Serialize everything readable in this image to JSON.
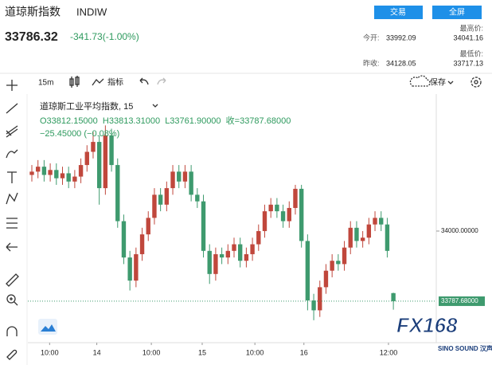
{
  "header": {
    "title": "道琼斯指数",
    "symbol": "INDIW",
    "trade_button": "交易",
    "fullscreen_button": "全屏",
    "price": "33786.32",
    "change": "-341.73(-1.00%)",
    "stats": [
      {
        "label": "今开:",
        "value": "33992.09"
      },
      {
        "label": "最高价:",
        "value": "34041.16"
      },
      {
        "label": "最低价:",
        "value": "33717.13"
      },
      {
        "label": "昨收:",
        "value": "34128.05"
      }
    ]
  },
  "toolbar": {
    "interval": "15m",
    "indicators": "指标",
    "save": "保存"
  },
  "chart_data": {
    "type": "candlestick",
    "title": "道琼斯工业平均指数, 15",
    "ohlc_line": "O33812.15000  H33813.31000  L33761.90000  收=33787.68000",
    "change_line": "−25.45000 (−0.08%)",
    "x": [
      0,
      1,
      2,
      3,
      4,
      5,
      6,
      7,
      8,
      9,
      10,
      11,
      12,
      13,
      14,
      15,
      16,
      17,
      18,
      19,
      20,
      21,
      22,
      23,
      24,
      25,
      26,
      27,
      28,
      29,
      30,
      31,
      32,
      33,
      34,
      35,
      36,
      37,
      38,
      39,
      40,
      41,
      42,
      43,
      44,
      45,
      46,
      47,
      48,
      49,
      50,
      51,
      52,
      53,
      54,
      55,
      56,
      57,
      58,
      59
    ],
    "open": [
      34170,
      34180,
      34195,
      34170,
      34185,
      34160,
      34175,
      34150,
      34165,
      34200,
      34240,
      34270,
      34130,
      34290,
      34200,
      34030,
      33920,
      33850,
      33930,
      33990,
      34040,
      34110,
      34080,
      34130,
      34180,
      34150,
      34180,
      34110,
      34090,
      33940,
      33870,
      33930,
      33920,
      33940,
      33960,
      33910,
      33930,
      33960,
      34000,
      34060,
      34080,
      34060,
      34030,
      34070,
      34128,
      33970,
      33790,
      33760,
      33830,
      33880,
      33910,
      33900,
      33950,
      34010,
      33970,
      33980,
      34020,
      34040,
      34020,
      33812.15
    ],
    "high": [
      34200,
      34215,
      34215,
      34205,
      34205,
      34195,
      34195,
      34185,
      34220,
      34260,
      34300,
      34290,
      34320,
      34310,
      34220,
      34050,
      33940,
      33950,
      34010,
      34060,
      34130,
      34130,
      34150,
      34200,
      34200,
      34200,
      34200,
      34130,
      34110,
      33960,
      33950,
      33950,
      33960,
      33980,
      33980,
      33950,
      33980,
      34020,
      34080,
      34100,
      34100,
      34080,
      34090,
      34140,
      34140,
      33990,
      33810,
      33850,
      33900,
      33930,
      33930,
      33970,
      34030,
      34030,
      34000,
      34040,
      34060,
      34060,
      34040,
      33813.31
    ],
    "low": [
      34150,
      34160,
      34150,
      34150,
      34140,
      34140,
      34130,
      34130,
      34145,
      34180,
      34220,
      34080,
      34110,
      34180,
      34010,
      33900,
      33820,
      33830,
      33910,
      33970,
      34020,
      34060,
      34060,
      34110,
      34130,
      34130,
      34090,
      34070,
      33920,
      33840,
      33850,
      33900,
      33900,
      33920,
      33890,
      33890,
      33910,
      33940,
      33980,
      34040,
      34040,
      34010,
      34010,
      34050,
      33950,
      33760,
      33730,
      33740,
      33810,
      33860,
      33880,
      33880,
      33930,
      33950,
      33950,
      33960,
      34000,
      34000,
      33920,
      33761.9
    ],
    "close": [
      34180,
      34195,
      34170,
      34185,
      34160,
      34175,
      34150,
      34165,
      34200,
      34240,
      34270,
      34130,
      34290,
      34200,
      34030,
      33920,
      33850,
      33930,
      33990,
      34040,
      34110,
      34080,
      34130,
      34180,
      34150,
      34180,
      34110,
      34090,
      33940,
      33870,
      33930,
      33920,
      33940,
      33960,
      33910,
      33930,
      33960,
      34000,
      34060,
      34080,
      34060,
      34030,
      34070,
      34128,
      33970,
      33790,
      33760,
      33830,
      33880,
      33910,
      33900,
      33950,
      34010,
      33970,
      33980,
      34020,
      34040,
      34020,
      33940,
      33787.68
    ],
    "up_color": "#c0473c",
    "down_color": "#3e9a6e",
    "xlim": [
      -0.65,
      66
    ],
    "xticks": [
      {
        "value": 2.9,
        "label": "10:00"
      },
      {
        "value": 10.6,
        "label": "14"
      },
      {
        "value": 19.5,
        "label": "10:00"
      },
      {
        "value": 27.8,
        "label": "15"
      },
      {
        "value": 36.4,
        "label": "10:00"
      },
      {
        "value": 44.4,
        "label": "16"
      },
      {
        "value": 58.2,
        "label": "12:00"
      }
    ],
    "ylim": [
      33662,
      34415
    ],
    "yticks": [
      {
        "value": 34000,
        "label": "34000.00000"
      }
    ],
    "last_price": {
      "value": 33787.68,
      "label": "33787.68000"
    }
  },
  "watermark": {
    "logo": "FX168",
    "sub": "SINO SOUND 汉声"
  }
}
